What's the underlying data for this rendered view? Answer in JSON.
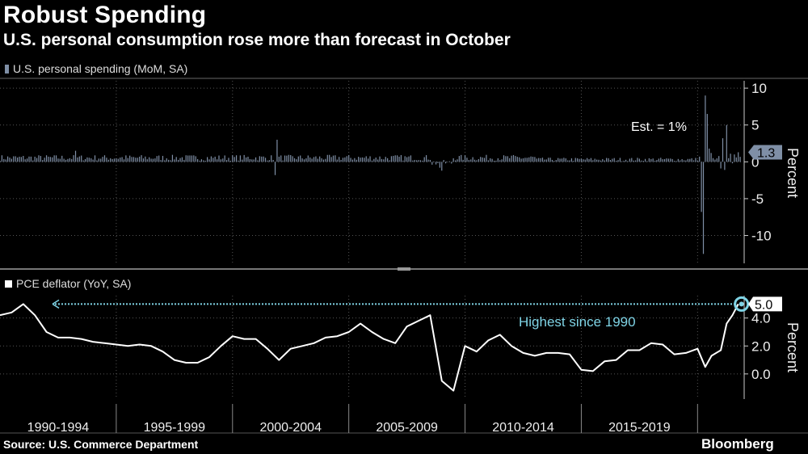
{
  "header": {
    "title": "Robust Spending",
    "subtitle": "U.S. personal consumption rose more than forecast in October"
  },
  "footer": {
    "source": "Source: U.S. Commerce Department",
    "brand": "Bloomberg"
  },
  "colors": {
    "background": "#000000",
    "spending": "#7f8fa6",
    "pce": "#ffffff",
    "accent": "#7fd4e6",
    "grid": "#555555"
  },
  "chart_data": [
    {
      "type": "bar",
      "legend": "U.S. personal spending (MoM, SA)",
      "ylabel": "Percent",
      "ylim": [
        -14,
        11
      ],
      "yticks": [
        10,
        5,
        0,
        -5,
        -10
      ],
      "annotation": "Est. = 1%",
      "last_value_label": "1.3",
      "x_start": 1990.0,
      "x_end": 2021.83,
      "baseline": 0.55,
      "noise_amplitude": 0.4,
      "spikes": [
        {
          "x": 1993.25,
          "y": 1.5
        },
        {
          "x": 2001.83,
          "y": -1.8
        },
        {
          "x": 2001.92,
          "y": 3.0
        },
        {
          "x": 2008.9,
          "y": -0.8
        },
        {
          "x": 2009.0,
          "y": -1.2
        },
        {
          "x": 2020.17,
          "y": -6.8
        },
        {
          "x": 2020.25,
          "y": -12.5
        },
        {
          "x": 2020.33,
          "y": 9.0
        },
        {
          "x": 2020.42,
          "y": 6.5
        },
        {
          "x": 2020.5,
          "y": 1.8
        },
        {
          "x": 2020.58,
          "y": 1.2
        },
        {
          "x": 2020.67,
          "y": 0.5
        },
        {
          "x": 2020.75,
          "y": 0.3
        },
        {
          "x": 2021.0,
          "y": -0.9
        },
        {
          "x": 2021.08,
          "y": 3.2
        },
        {
          "x": 2021.17,
          "y": -1.1
        },
        {
          "x": 2021.25,
          "y": 5.0
        },
        {
          "x": 2021.33,
          "y": 0.5
        },
        {
          "x": 2021.42,
          "y": 1.1
        },
        {
          "x": 2021.5,
          "y": -0.2
        },
        {
          "x": 2021.58,
          "y": 1.0
        },
        {
          "x": 2021.67,
          "y": 0.6
        },
        {
          "x": 2021.75,
          "y": 1.3
        }
      ]
    },
    {
      "type": "line",
      "legend": "PCE deflator (YoY, SA)",
      "ylabel": "Percent",
      "ylim": [
        -1.8,
        5.6
      ],
      "yticks": [
        4.0,
        2.0,
        0.0
      ],
      "ytick_labels": [
        "4.0",
        "2.0",
        "0.0"
      ],
      "annotation": "Highest since 1990",
      "last_value_label": "5.0",
      "reference_level": 5.0,
      "categories": [
        "1990-1994",
        "1995-1999",
        "2000-2004",
        "2005-2009",
        "2010-2014",
        "2015-2019"
      ],
      "x": [
        1990.0,
        1990.5,
        1991.0,
        1991.5,
        1992.0,
        1992.5,
        1993.0,
        1993.5,
        1994.0,
        1994.5,
        1995.0,
        1995.5,
        1996.0,
        1996.5,
        1997.0,
        1997.5,
        1998.0,
        1998.5,
        1999.0,
        1999.5,
        2000.0,
        2000.5,
        2001.0,
        2001.5,
        2002.0,
        2002.5,
        2003.0,
        2003.5,
        2004.0,
        2004.5,
        2005.0,
        2005.5,
        2006.0,
        2006.5,
        2007.0,
        2007.5,
        2008.0,
        2008.5,
        2009.0,
        2009.5,
        2010.0,
        2010.5,
        2011.0,
        2011.5,
        2012.0,
        2012.5,
        2013.0,
        2013.5,
        2014.0,
        2014.5,
        2015.0,
        2015.5,
        2016.0,
        2016.5,
        2017.0,
        2017.5,
        2018.0,
        2018.5,
        2019.0,
        2019.5,
        2020.0,
        2020.33,
        2020.6,
        2021.0,
        2021.25,
        2021.5,
        2021.75
      ],
      "values": [
        4.2,
        4.4,
        5.0,
        4.2,
        3.0,
        2.6,
        2.6,
        2.5,
        2.3,
        2.2,
        2.1,
        2.0,
        2.1,
        2.0,
        1.6,
        1.0,
        0.8,
        0.8,
        1.2,
        2.0,
        2.7,
        2.5,
        2.5,
        1.8,
        1.0,
        1.8,
        2.0,
        2.2,
        2.6,
        2.7,
        3.0,
        3.6,
        3.0,
        2.5,
        2.2,
        3.4,
        3.8,
        4.2,
        -0.5,
        -1.2,
        2.0,
        1.6,
        2.4,
        2.8,
        2.0,
        1.5,
        1.3,
        1.5,
        1.5,
        1.4,
        0.3,
        0.2,
        0.9,
        1.0,
        1.7,
        1.7,
        2.2,
        2.1,
        1.4,
        1.5,
        1.8,
        0.5,
        1.3,
        1.7,
        3.6,
        4.2,
        5.0
      ]
    }
  ]
}
